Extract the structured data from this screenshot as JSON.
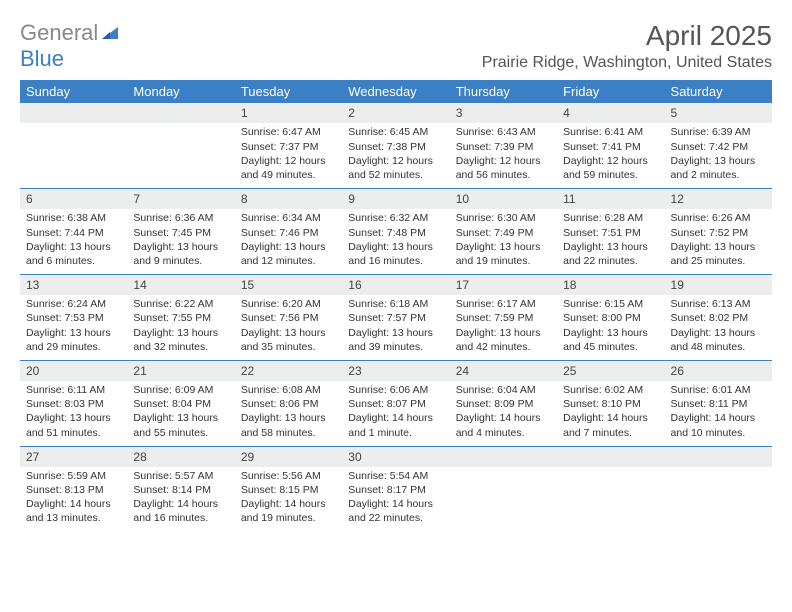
{
  "logo": {
    "part1": "General",
    "part2": "Blue"
  },
  "colors": {
    "brand_blue": "#3b7fc4",
    "logo_gray": "#888888",
    "header_bg": "#3b7fc4",
    "header_fg": "#ffffff",
    "daynum_bg": "#eceded",
    "text": "#333333",
    "bg": "#ffffff"
  },
  "typography": {
    "month_year_fontsize": 28,
    "location_fontsize": 16,
    "header_fontsize": 13,
    "daynum_fontsize": 12,
    "body_fontsize": 10.5,
    "font_family": "Arial"
  },
  "title": {
    "month_year": "April 2025",
    "location": "Prairie Ridge, Washington, United States"
  },
  "calendar": {
    "day_headers": [
      "Sunday",
      "Monday",
      "Tuesday",
      "Wednesday",
      "Thursday",
      "Friday",
      "Saturday"
    ],
    "weeks": [
      [
        null,
        null,
        {
          "n": "1",
          "rise": "Sunrise: 6:47 AM",
          "set": "Sunset: 7:37 PM",
          "dl": "Daylight: 12 hours and 49 minutes."
        },
        {
          "n": "2",
          "rise": "Sunrise: 6:45 AM",
          "set": "Sunset: 7:38 PM",
          "dl": "Daylight: 12 hours and 52 minutes."
        },
        {
          "n": "3",
          "rise": "Sunrise: 6:43 AM",
          "set": "Sunset: 7:39 PM",
          "dl": "Daylight: 12 hours and 56 minutes."
        },
        {
          "n": "4",
          "rise": "Sunrise: 6:41 AM",
          "set": "Sunset: 7:41 PM",
          "dl": "Daylight: 12 hours and 59 minutes."
        },
        {
          "n": "5",
          "rise": "Sunrise: 6:39 AM",
          "set": "Sunset: 7:42 PM",
          "dl": "Daylight: 13 hours and 2 minutes."
        }
      ],
      [
        {
          "n": "6",
          "rise": "Sunrise: 6:38 AM",
          "set": "Sunset: 7:44 PM",
          "dl": "Daylight: 13 hours and 6 minutes."
        },
        {
          "n": "7",
          "rise": "Sunrise: 6:36 AM",
          "set": "Sunset: 7:45 PM",
          "dl": "Daylight: 13 hours and 9 minutes."
        },
        {
          "n": "8",
          "rise": "Sunrise: 6:34 AM",
          "set": "Sunset: 7:46 PM",
          "dl": "Daylight: 13 hours and 12 minutes."
        },
        {
          "n": "9",
          "rise": "Sunrise: 6:32 AM",
          "set": "Sunset: 7:48 PM",
          "dl": "Daylight: 13 hours and 16 minutes."
        },
        {
          "n": "10",
          "rise": "Sunrise: 6:30 AM",
          "set": "Sunset: 7:49 PM",
          "dl": "Daylight: 13 hours and 19 minutes."
        },
        {
          "n": "11",
          "rise": "Sunrise: 6:28 AM",
          "set": "Sunset: 7:51 PM",
          "dl": "Daylight: 13 hours and 22 minutes."
        },
        {
          "n": "12",
          "rise": "Sunrise: 6:26 AM",
          "set": "Sunset: 7:52 PM",
          "dl": "Daylight: 13 hours and 25 minutes."
        }
      ],
      [
        {
          "n": "13",
          "rise": "Sunrise: 6:24 AM",
          "set": "Sunset: 7:53 PM",
          "dl": "Daylight: 13 hours and 29 minutes."
        },
        {
          "n": "14",
          "rise": "Sunrise: 6:22 AM",
          "set": "Sunset: 7:55 PM",
          "dl": "Daylight: 13 hours and 32 minutes."
        },
        {
          "n": "15",
          "rise": "Sunrise: 6:20 AM",
          "set": "Sunset: 7:56 PM",
          "dl": "Daylight: 13 hours and 35 minutes."
        },
        {
          "n": "16",
          "rise": "Sunrise: 6:18 AM",
          "set": "Sunset: 7:57 PM",
          "dl": "Daylight: 13 hours and 39 minutes."
        },
        {
          "n": "17",
          "rise": "Sunrise: 6:17 AM",
          "set": "Sunset: 7:59 PM",
          "dl": "Daylight: 13 hours and 42 minutes."
        },
        {
          "n": "18",
          "rise": "Sunrise: 6:15 AM",
          "set": "Sunset: 8:00 PM",
          "dl": "Daylight: 13 hours and 45 minutes."
        },
        {
          "n": "19",
          "rise": "Sunrise: 6:13 AM",
          "set": "Sunset: 8:02 PM",
          "dl": "Daylight: 13 hours and 48 minutes."
        }
      ],
      [
        {
          "n": "20",
          "rise": "Sunrise: 6:11 AM",
          "set": "Sunset: 8:03 PM",
          "dl": "Daylight: 13 hours and 51 minutes."
        },
        {
          "n": "21",
          "rise": "Sunrise: 6:09 AM",
          "set": "Sunset: 8:04 PM",
          "dl": "Daylight: 13 hours and 55 minutes."
        },
        {
          "n": "22",
          "rise": "Sunrise: 6:08 AM",
          "set": "Sunset: 8:06 PM",
          "dl": "Daylight: 13 hours and 58 minutes."
        },
        {
          "n": "23",
          "rise": "Sunrise: 6:06 AM",
          "set": "Sunset: 8:07 PM",
          "dl": "Daylight: 14 hours and 1 minute."
        },
        {
          "n": "24",
          "rise": "Sunrise: 6:04 AM",
          "set": "Sunset: 8:09 PM",
          "dl": "Daylight: 14 hours and 4 minutes."
        },
        {
          "n": "25",
          "rise": "Sunrise: 6:02 AM",
          "set": "Sunset: 8:10 PM",
          "dl": "Daylight: 14 hours and 7 minutes."
        },
        {
          "n": "26",
          "rise": "Sunrise: 6:01 AM",
          "set": "Sunset: 8:11 PM",
          "dl": "Daylight: 14 hours and 10 minutes."
        }
      ],
      [
        {
          "n": "27",
          "rise": "Sunrise: 5:59 AM",
          "set": "Sunset: 8:13 PM",
          "dl": "Daylight: 14 hours and 13 minutes."
        },
        {
          "n": "28",
          "rise": "Sunrise: 5:57 AM",
          "set": "Sunset: 8:14 PM",
          "dl": "Daylight: 14 hours and 16 minutes."
        },
        {
          "n": "29",
          "rise": "Sunrise: 5:56 AM",
          "set": "Sunset: 8:15 PM",
          "dl": "Daylight: 14 hours and 19 minutes."
        },
        {
          "n": "30",
          "rise": "Sunrise: 5:54 AM",
          "set": "Sunset: 8:17 PM",
          "dl": "Daylight: 14 hours and 22 minutes."
        },
        null,
        null,
        null
      ]
    ]
  }
}
